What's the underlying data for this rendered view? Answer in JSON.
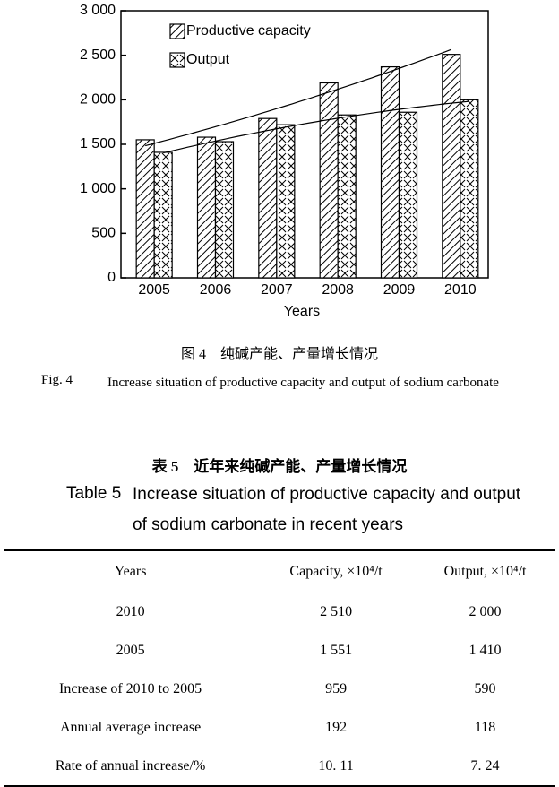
{
  "chart_data": {
    "type": "bar",
    "categories": [
      "2005",
      "2006",
      "2007",
      "2008",
      "2009",
      "2010"
    ],
    "series": [
      {
        "name": "Productive capacity",
        "color": "#000000",
        "values": [
          1551,
          1580,
          1790,
          2190,
          2370,
          2510
        ]
      },
      {
        "name": "Output",
        "color": "#000000",
        "values": [
          1410,
          1530,
          1720,
          1830,
          1860,
          2000
        ]
      }
    ],
    "xlabel": "Years",
    "ylim": [
      0,
      3000
    ],
    "yticks": [
      0,
      500,
      {
        "value": 1000,
        "label": "1 000"
      },
      {
        "value": 1500,
        "label": "1 500"
      },
      {
        "value": 2000,
        "label": "2 000"
      },
      {
        "value": 2500,
        "label": "2 500"
      },
      {
        "value": 3000,
        "label": "3 000"
      }
    ]
  },
  "figure_caption": {
    "cn": "图 4　纯碱产能、产量增长情况",
    "label": "Fig. 4",
    "text": "Increase situation of productive capacity and output of sodium carbonate"
  },
  "table": {
    "title_cn": "表 5　近年来纯碱产能、产量增长情况",
    "label": "Table 5",
    "caption": "Increase situation of productive capacity and output of sodium carbonate in recent years",
    "header": [
      "Years",
      "Capacity, ×10⁴/t",
      "Output, ×10⁴/t"
    ],
    "rows": [
      [
        "2010",
        "2 510",
        "2 000"
      ],
      [
        "2005",
        "1 551",
        "1 410"
      ],
      [
        "Increase of 2010 to 2005",
        "959",
        "590"
      ],
      [
        "Annual average increase",
        "192",
        "118"
      ],
      [
        "Rate of annual increase/%",
        "10. 11",
        "7. 24"
      ]
    ]
  }
}
